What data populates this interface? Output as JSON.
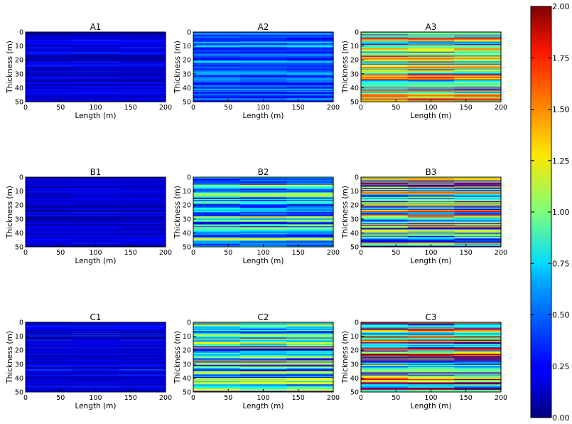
{
  "chart_data": [
    {
      "type": "heatmap",
      "title": "A1",
      "xlabel": "Length (m)",
      "ylabel": "Thickness (m)",
      "xlim": [
        0,
        200
      ],
      "ylim": [
        50,
        0
      ],
      "xticks": [
        0,
        50,
        100,
        150,
        200
      ],
      "yticks": [
        0,
        10,
        20,
        30,
        40,
        50
      ],
      "value_range": [
        0.05,
        0.3
      ],
      "structure": "horizontal layers",
      "colormap": "jet"
    },
    {
      "type": "heatmap",
      "title": "A2",
      "xlabel": "Length (m)",
      "ylabel": "Thickness (m)",
      "xlim": [
        0,
        200
      ],
      "ylim": [
        50,
        0
      ],
      "xticks": [
        0,
        50,
        100,
        150,
        200
      ],
      "yticks": [
        0,
        10,
        20,
        30,
        40,
        50
      ],
      "value_range": [
        0.25,
        0.7
      ],
      "structure": "horizontal layers",
      "colormap": "jet"
    },
    {
      "type": "heatmap",
      "title": "A3",
      "xlabel": "Length (m)",
      "ylabel": "Thickness (m)",
      "xlim": [
        0,
        200
      ],
      "ylim": [
        50,
        0
      ],
      "xticks": [
        0,
        50,
        100,
        150,
        200
      ],
      "yticks": [
        0,
        10,
        20,
        30,
        40,
        50
      ],
      "value_range": [
        0.5,
        1.75
      ],
      "structure": "horizontal layers",
      "colormap": "jet"
    },
    {
      "type": "heatmap",
      "title": "B1",
      "xlabel": "Length (m)",
      "ylabel": "Thickness (m)",
      "xlim": [
        0,
        200
      ],
      "ylim": [
        50,
        0
      ],
      "xticks": [
        0,
        50,
        100,
        150,
        200
      ],
      "yticks": [
        0,
        10,
        20,
        30,
        40,
        50
      ],
      "value_range": [
        0.05,
        0.3
      ],
      "structure": "horizontal layers",
      "colormap": "jet"
    },
    {
      "type": "heatmap",
      "title": "B2",
      "xlabel": "Length (m)",
      "ylabel": "Thickness (m)",
      "xlim": [
        0,
        200
      ],
      "ylim": [
        50,
        0
      ],
      "xticks": [
        0,
        50,
        100,
        150,
        200
      ],
      "yticks": [
        0,
        10,
        20,
        30,
        40,
        50
      ],
      "value_range": [
        0.25,
        1.25
      ],
      "structure": "horizontal layers",
      "colormap": "jet"
    },
    {
      "type": "heatmap",
      "title": "B3",
      "xlabel": "Length (m)",
      "ylabel": "Thickness (m)",
      "xlim": [
        0,
        200
      ],
      "ylim": [
        50,
        0
      ],
      "xticks": [
        0,
        50,
        100,
        150,
        200
      ],
      "yticks": [
        0,
        10,
        20,
        30,
        40,
        50
      ],
      "value_range": [
        0.2,
        1.8
      ],
      "structure": "horizontal layers",
      "colormap": "jet"
    },
    {
      "type": "heatmap",
      "title": "C1",
      "xlabel": "Length (m)",
      "ylabel": "Thickness (m)",
      "xlim": [
        0,
        200
      ],
      "ylim": [
        50,
        0
      ],
      "xticks": [
        0,
        50,
        100,
        150,
        200
      ],
      "yticks": [
        0,
        10,
        20,
        30,
        40,
        50
      ],
      "value_range": [
        0.05,
        0.35
      ],
      "structure": "horizontal layers",
      "colormap": "jet"
    },
    {
      "type": "heatmap",
      "title": "C2",
      "xlabel": "Length (m)",
      "ylabel": "Thickness (m)",
      "xlim": [
        0,
        200
      ],
      "ylim": [
        50,
        0
      ],
      "xticks": [
        0,
        50,
        100,
        150,
        200
      ],
      "yticks": [
        0,
        10,
        20,
        30,
        40,
        50
      ],
      "value_range": [
        0.2,
        1.5
      ],
      "structure": "horizontal layers",
      "colormap": "jet"
    },
    {
      "type": "heatmap",
      "title": "C3",
      "xlabel": "Length (m)",
      "ylabel": "Thickness (m)",
      "xlim": [
        0,
        200
      ],
      "ylim": [
        50,
        0
      ],
      "xticks": [
        0,
        50,
        100,
        150,
        200
      ],
      "yticks": [
        0,
        10,
        20,
        30,
        40,
        50
      ],
      "value_range": [
        0.3,
        2.0
      ],
      "structure": "horizontal layers",
      "colormap": "jet"
    }
  ],
  "colorbar": {
    "min": 0.0,
    "max": 2.0,
    "ticks": [
      "0.00",
      "0.25",
      "0.50",
      "0.75",
      "1.00",
      "1.25",
      "1.50",
      "1.75",
      "2.00"
    ],
    "colormap": "jet"
  }
}
